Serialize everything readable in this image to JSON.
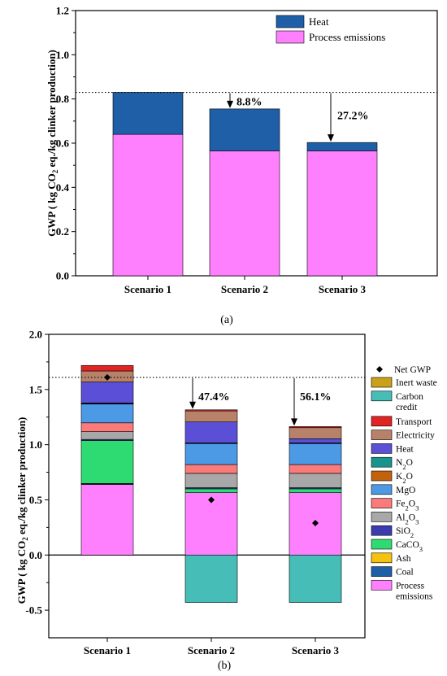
{
  "chart_data": [
    {
      "type": "bar",
      "stacked": true,
      "caption": "(a)",
      "ylabel_parts": [
        "GWP ( kg CO",
        "2",
        " eq./kg clinker production)"
      ],
      "ylim": [
        0,
        1.2
      ],
      "yticks": [
        "0.0",
        "0.2",
        "0.4",
        "0.6",
        "0.8",
        "1.0",
        "1.2"
      ],
      "categories": [
        "Scenario 1",
        "Scenario 2",
        "Scenario 3"
      ],
      "series": [
        {
          "name": "Process emissions",
          "color": "#ff80ff",
          "values": [
            0.64,
            0.565,
            0.565
          ]
        },
        {
          "name": "Heat",
          "color": "#1f5fa8",
          "values": [
            0.19,
            0.19,
            0.038
          ]
        }
      ],
      "legend_position": "top-right",
      "legend_order": [
        "Heat",
        "Process emissions"
      ],
      "reference_line": 0.83,
      "annotations": [
        {
          "text": "8.8%",
          "category_index": 1
        },
        {
          "text": "27.2%",
          "category_index": 2
        }
      ]
    },
    {
      "type": "bar",
      "stacked": true,
      "caption": "(b)",
      "ylabel_parts": [
        "GWP ( kg CO",
        "2",
        " eq./kg clinker production)"
      ],
      "ylim": [
        -0.75,
        2.0
      ],
      "yticks": [
        "-0.5",
        "0.0",
        "0.5",
        "1.0",
        "1.5",
        "2.0"
      ],
      "ytick_values": [
        -0.5,
        0,
        0.5,
        1.0,
        1.5,
        2.0
      ],
      "categories": [
        "Scenario 1",
        "Scenario 2",
        "Scenario 3"
      ],
      "series": [
        {
          "name": "Process emissions",
          "color": "#ff80ff",
          "values": [
            0.64,
            0.565,
            0.565
          ]
        },
        {
          "name": "Coal",
          "color": "#1f5fa8",
          "values": [
            0.005,
            0,
            0
          ]
        },
        {
          "name": "Ash",
          "color": "#f5c211",
          "values": [
            0.003,
            0,
            0
          ]
        },
        {
          "name": "CaCO3",
          "color": "#2edb72",
          "values": [
            0.39,
            0.035,
            0.035
          ]
        },
        {
          "name": "SiO2",
          "color": "#3c3caf",
          "values": [
            0.01,
            0.01,
            0.01
          ]
        },
        {
          "name": "Al2O3",
          "color": "#a8a8a8",
          "values": [
            0.07,
            0.13,
            0.13
          ]
        },
        {
          "name": "Fe2O3",
          "color": "#fb7a7a",
          "values": [
            0.08,
            0.08,
            0.08
          ]
        },
        {
          "name": "MgO",
          "color": "#4c9ae6",
          "values": [
            0.17,
            0.19,
            0.19
          ]
        },
        {
          "name": "K2O",
          "color": "#c2620c",
          "values": [
            0.005,
            0.003,
            0.003
          ]
        },
        {
          "name": "N2O",
          "color": "#17958c",
          "values": [
            0.005,
            0.003,
            0.003
          ]
        },
        {
          "name": "Heat",
          "color": "#5a4fd6",
          "values": [
            0.19,
            0.19,
            0.038
          ]
        },
        {
          "name": "Electricity",
          "color": "#b8826a",
          "values": [
            0.1,
            0.1,
            0.1
          ]
        },
        {
          "name": "Transport",
          "color": "#e02424",
          "values": [
            0.05,
            0.01,
            0.01
          ]
        },
        {
          "name": "Carbon credit",
          "color": "#46bdb7",
          "values": [
            0,
            -0.43,
            -0.43
          ]
        },
        {
          "name": "Inert waste",
          "color": "#c9a21a",
          "values": [
            0,
            0,
            0
          ]
        }
      ],
      "net_gwp": {
        "name": "Net GWP",
        "values": [
          1.61,
          0.5,
          0.29
        ]
      },
      "legend_position": "right",
      "legend_order": [
        "Net GWP",
        "Inert waste",
        "Carbon credit",
        "Transport",
        "Electricity",
        "Heat",
        "N2O",
        "K2O",
        "MgO",
        "Fe2O3",
        "Al2O3",
        "SiO2",
        "CaCO3",
        "Ash",
        "Coal",
        "Process emissions"
      ],
      "reference_line": 1.61,
      "annotations": [
        {
          "text": "47.4%",
          "category_index": 1
        },
        {
          "text": "56.1%",
          "category_index": 2
        }
      ]
    }
  ]
}
